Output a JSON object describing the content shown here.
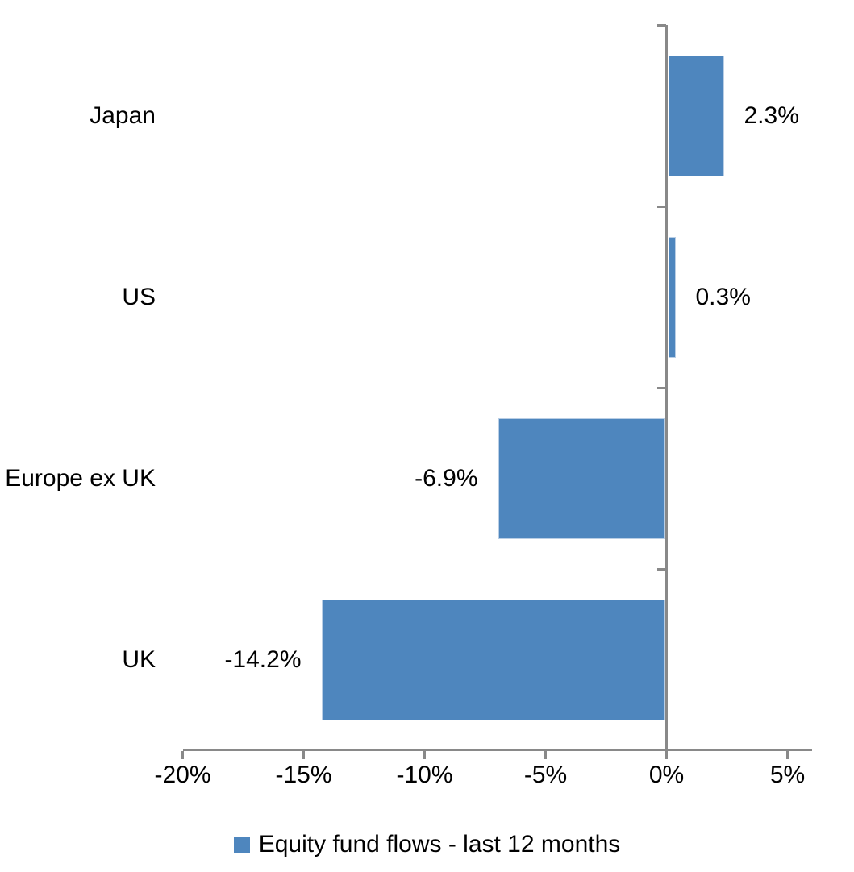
{
  "chart_data": {
    "type": "bar",
    "orientation": "horizontal",
    "title": "",
    "xlabel": "",
    "ylabel": "",
    "categories": [
      "Japan",
      "US",
      "Europe ex UK",
      "UK"
    ],
    "series": [
      {
        "name": "Equity fund flows - last 12 months",
        "values": [
          2.3,
          0.3,
          -6.9,
          -14.2
        ],
        "value_labels": [
          "2.3%",
          "0.3%",
          "-6.9%",
          "-14.2%"
        ]
      }
    ],
    "xlim": [
      -20,
      6
    ],
    "x_ticks": [
      -20,
      -15,
      -10,
      -5,
      0,
      5
    ],
    "x_tick_labels": [
      "-20%",
      "-15%",
      "-10%",
      "-5%",
      "0%",
      "5%"
    ],
    "grid": false,
    "legend_position": "bottom",
    "colors": {
      "bar_fill": "#4E86BE",
      "bar_border": "#B9CEE5",
      "axis": "#898989",
      "text": "#000000",
      "background": "#FFFFFF"
    }
  },
  "legend": {
    "label": "Equity fund flows - last 12 months"
  }
}
